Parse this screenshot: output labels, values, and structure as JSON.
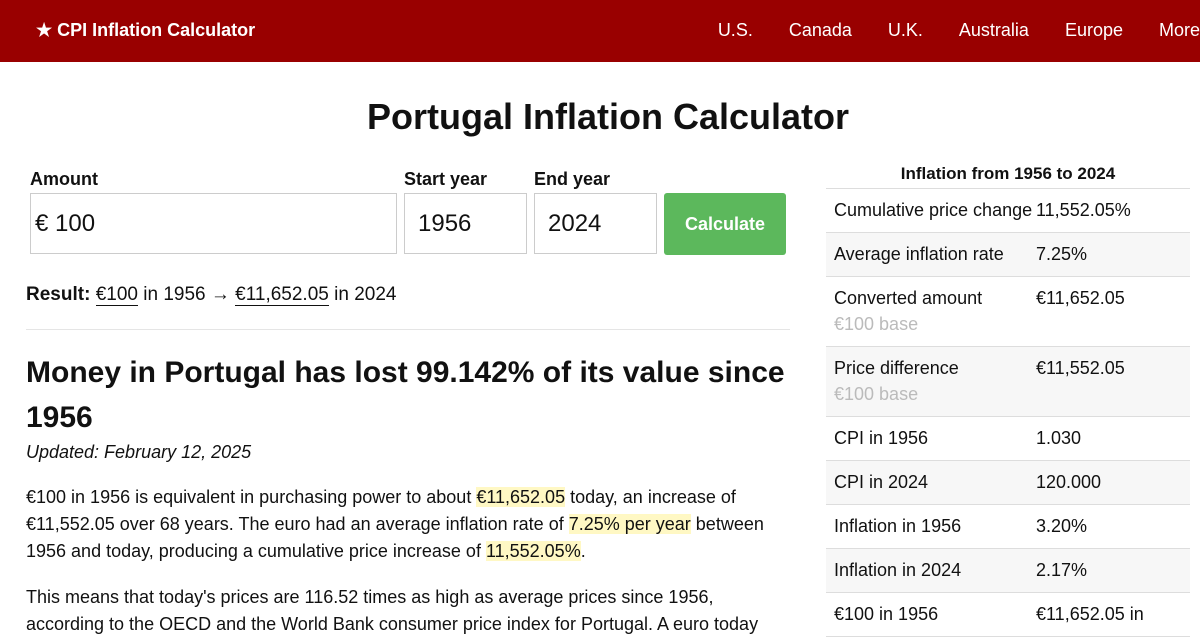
{
  "nav": {
    "brand": "★ CPI Inflation Calculator",
    "links": [
      "U.S.",
      "Canada",
      "U.K.",
      "Australia",
      "Europe",
      "More"
    ]
  },
  "title": "Portugal Inflation Calculator",
  "form": {
    "amount_label": "Amount",
    "currency": "€",
    "amount": "100",
    "start_label": "Start year",
    "start": "1956",
    "end_label": "End year",
    "end": "2024",
    "button": "Calculate"
  },
  "result": {
    "label": "Result:",
    "from": "€100",
    "mid": "in 1956 →",
    "to": "€11,652.05",
    "end": "in 2024"
  },
  "heading": "Money in Portugal has lost 99.142% of its value since 1956",
  "updated": "Updated: February 12, 2025",
  "paragraph1": [
    "€100 in 1956 is equivalent in purchasing power to about ",
    "€11,652.05",
    " today, an increase of €11,552.05 over 68 years. The euro had an average inflation rate of ",
    "7.25% per year",
    " between 1956 and today, producing a cumulative price increase of ",
    "11,552.05%",
    "."
  ],
  "paragraph2": "This means that today's prices are 116.52 times as high as average prices since 1956, according to the OECD and the World Bank consumer price index for Portugal. A euro today",
  "table": {
    "title": "Inflation from 1956 to 2024",
    "rows": [
      {
        "label": "Cumulative price change",
        "value": "11,552.05%"
      },
      {
        "label": "Average inflation rate",
        "value": "7.25%"
      },
      {
        "label": "Converted amount",
        "note": "€100 base",
        "value": "€11,652.05"
      },
      {
        "label": "Price difference",
        "note": "€100 base",
        "value": "€11,552.05"
      },
      {
        "label": "CPI in 1956",
        "value": "1.030"
      },
      {
        "label": "CPI in 2024",
        "value": "120.000"
      },
      {
        "label": "Inflation in 1956",
        "value": "3.20%"
      },
      {
        "label": "Inflation in 2024",
        "value": "2.17%"
      },
      {
        "label": "€100 in 1956",
        "value": "€11,652.05 in"
      }
    ]
  }
}
